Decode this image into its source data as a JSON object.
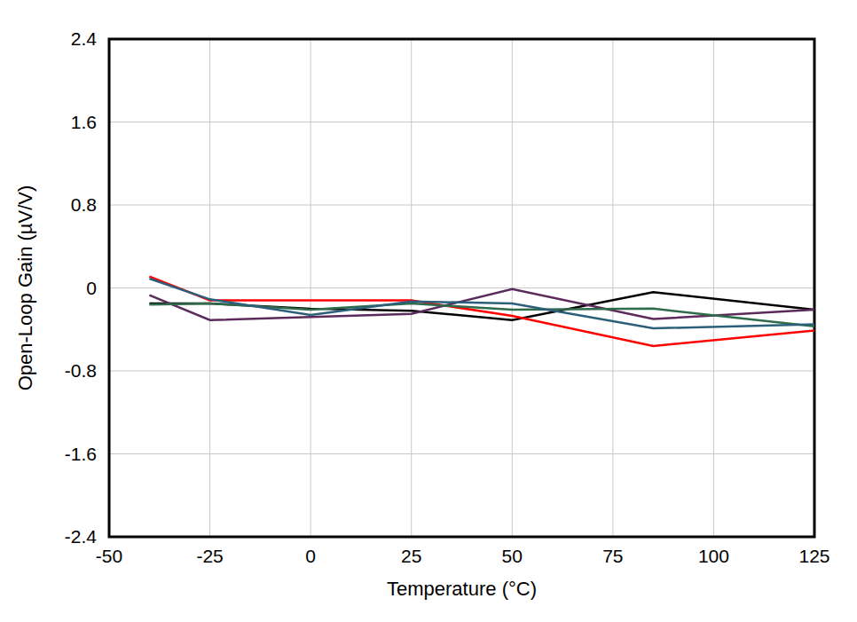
{
  "chart_data": {
    "type": "line",
    "x_label": "Temperature (°C)",
    "y_label": "Open-Loop Gain (µV/V)",
    "x": [
      -40,
      -25,
      0,
      25,
      50,
      85,
      125
    ],
    "series": [
      {
        "color": "#000000",
        "values": [
          -0.15,
          -0.15,
          -0.2,
          -0.22,
          -0.31,
          -0.04,
          -0.21
        ]
      },
      {
        "color": "#ff0000",
        "values": [
          0.11,
          -0.12,
          -0.12,
          -0.12,
          -0.27,
          -0.56,
          -0.41
        ]
      },
      {
        "color": "#5c2a5c",
        "values": [
          -0.07,
          -0.31,
          -0.28,
          -0.25,
          -0.01,
          -0.3,
          -0.21
        ]
      },
      {
        "color": "#2e6b4a",
        "values": [
          -0.16,
          -0.15,
          -0.21,
          -0.15,
          -0.21,
          -0.2,
          -0.37
        ]
      },
      {
        "color": "#2b5f7a",
        "values": [
          0.09,
          -0.11,
          -0.26,
          -0.13,
          -0.15,
          -0.39,
          -0.35
        ]
      }
    ],
    "xlim": [
      -50,
      125
    ],
    "ylim": [
      -2.4,
      2.4
    ],
    "xticks": [
      -50,
      -25,
      0,
      25,
      50,
      75,
      100,
      125
    ],
    "yticks": [
      -2.4,
      -1.6,
      -0.8,
      0,
      0.8,
      1.6,
      2.4
    ],
    "grid": true
  }
}
